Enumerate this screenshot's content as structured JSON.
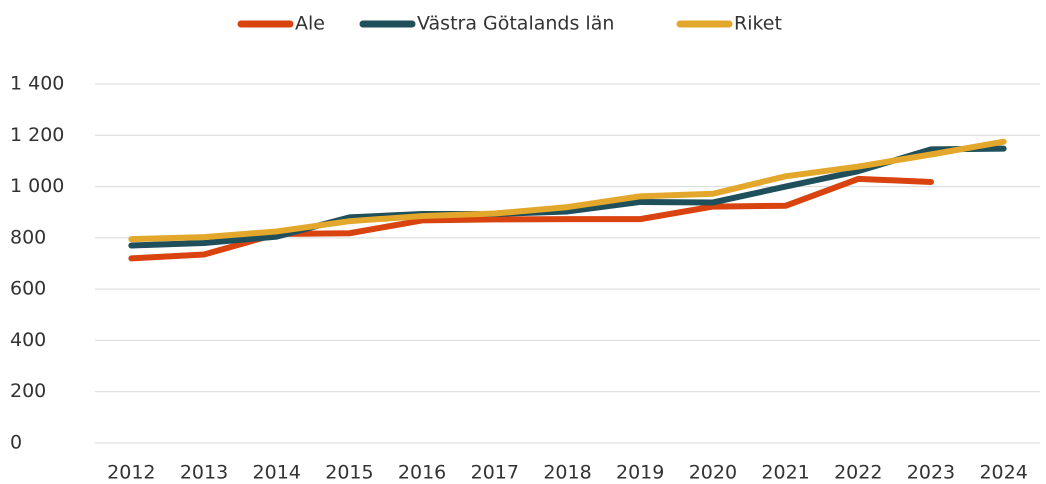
{
  "chart_data": {
    "type": "line",
    "categories": [
      "2012",
      "2013",
      "2014",
      "2015",
      "2016",
      "2017",
      "2018",
      "2019",
      "2020",
      "2021",
      "2022",
      "2023",
      "2024"
    ],
    "series": [
      {
        "name": "Ale",
        "color": "#d9430f",
        "values": [
          720,
          735,
          815,
          818,
          868,
          872,
          873,
          873,
          922,
          925,
          1030,
          1018,
          null
        ]
      },
      {
        "name": "Västra Götalands län",
        "color": "#1e4f5a",
        "values": [
          770,
          780,
          805,
          880,
          893,
          893,
          903,
          940,
          938,
          1000,
          1060,
          1145,
          1148
        ]
      },
      {
        "name": "Riket",
        "color": "#e3a82b",
        "values": [
          795,
          803,
          825,
          865,
          885,
          895,
          920,
          962,
          972,
          1040,
          1078,
          1125,
          1175
        ]
      }
    ],
    "ylim": [
      0,
      1400
    ],
    "yticks": [
      0,
      200,
      400,
      600,
      800,
      {
        "value": 1000,
        "label": "1 000"
      },
      {
        "value": 1200,
        "label": "1 200"
      },
      {
        "value": 1400,
        "label": "1 400"
      }
    ],
    "grid": true,
    "legend": "top"
  }
}
